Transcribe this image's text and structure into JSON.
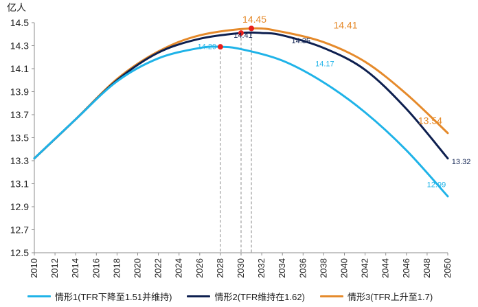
{
  "chart_data": {
    "type": "line",
    "title": "",
    "ylabel": "亿人",
    "xlabel": "",
    "ylim": [
      12.5,
      14.5
    ],
    "yticks": [
      "12.5",
      "12.7",
      "12.9",
      "13.1",
      "13.3",
      "13.5",
      "13.7",
      "13.9",
      "14.1",
      "14.3",
      "14.5"
    ],
    "xlim": [
      2010,
      2050
    ],
    "xticks": [
      "2010",
      "2012",
      "2014",
      "2016",
      "2018",
      "2020",
      "2022",
      "2024",
      "2026",
      "2028",
      "2030",
      "2032",
      "2034",
      "2036",
      "2038",
      "2040",
      "2042",
      "2044",
      "2046",
      "2048",
      "2050"
    ],
    "series": [
      {
        "name": "情形1(TFR下降至1.51并维持)",
        "color": "#1fb3e8",
        "x": [
          2010,
          2014,
          2018,
          2022,
          2026,
          2028,
          2030,
          2034,
          2038,
          2042,
          2046,
          2050
        ],
        "values": [
          13.32,
          13.66,
          13.99,
          14.19,
          14.28,
          14.29,
          14.27,
          14.17,
          13.98,
          13.72,
          13.39,
          12.99
        ]
      },
      {
        "name": "情形2(TFR维持在1.62)",
        "color": "#0d1f4f",
        "x": [
          2010,
          2014,
          2018,
          2022,
          2026,
          2030,
          2032,
          2034,
          2038,
          2042,
          2046,
          2050
        ],
        "values": [
          13.32,
          13.66,
          14.0,
          14.24,
          14.36,
          14.41,
          14.41,
          14.39,
          14.28,
          14.09,
          13.75,
          13.32
        ]
      },
      {
        "name": "情形3(TFR上升至1.7)",
        "color": "#e58a2b",
        "x": [
          2010,
          2014,
          2018,
          2022,
          2026,
          2031,
          2034,
          2038,
          2042,
          2046,
          2050
        ],
        "values": [
          13.32,
          13.66,
          14.01,
          14.25,
          14.39,
          14.45,
          14.42,
          14.33,
          14.16,
          13.88,
          13.54
        ]
      }
    ],
    "peaks": [
      {
        "series": 0,
        "x": 2028,
        "y": 14.29
      },
      {
        "series": 1,
        "x": 2030,
        "y": 14.41
      },
      {
        "series": 2,
        "x": 2031,
        "y": 14.45
      }
    ],
    "annotations": [
      {
        "text": "14.29",
        "x": 2026.7,
        "y": 14.27,
        "series": 0
      },
      {
        "text": "14.41",
        "x": 2030.2,
        "y": 14.37,
        "series": 1
      },
      {
        "text": "14.45",
        "x": 2031.3,
        "y": 14.5,
        "series": 2
      },
      {
        "text": "14.35",
        "x": 2035.8,
        "y": 14.32,
        "series": 1
      },
      {
        "text": "14.41",
        "x": 2040.1,
        "y": 14.45,
        "series": 2
      },
      {
        "text": "14.17",
        "x": 2038.1,
        "y": 14.12,
        "series": 0
      },
      {
        "text": "13.54",
        "x": 2048.3,
        "y": 13.62,
        "series": 2
      },
      {
        "text": "13.32",
        "x": 2051.3,
        "y": 13.27,
        "series": 1
      },
      {
        "text": "12.99",
        "x": 2048.9,
        "y": 13.07,
        "series": 0
      }
    ]
  }
}
